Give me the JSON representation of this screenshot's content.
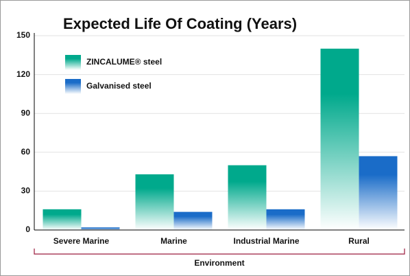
{
  "chart_data": {
    "type": "bar",
    "title": "Expected Life Of Coating (Years)",
    "categories": [
      "Severe Marine",
      "Marine",
      "Industrial Marine",
      "Rural"
    ],
    "series": [
      {
        "name": "ZINCALUME® steel",
        "color": "#00a98c",
        "values": [
          16,
          43,
          50,
          140
        ]
      },
      {
        "name": "Galvanised steel",
        "color": "#1a6cc8",
        "values": [
          2,
          14,
          16,
          57
        ]
      }
    ],
    "xlabel": "Environment",
    "ylim": [
      0,
      150
    ],
    "yticks": [
      0,
      30,
      60,
      90,
      120,
      150
    ],
    "grid": true,
    "legend": "upper left"
  }
}
